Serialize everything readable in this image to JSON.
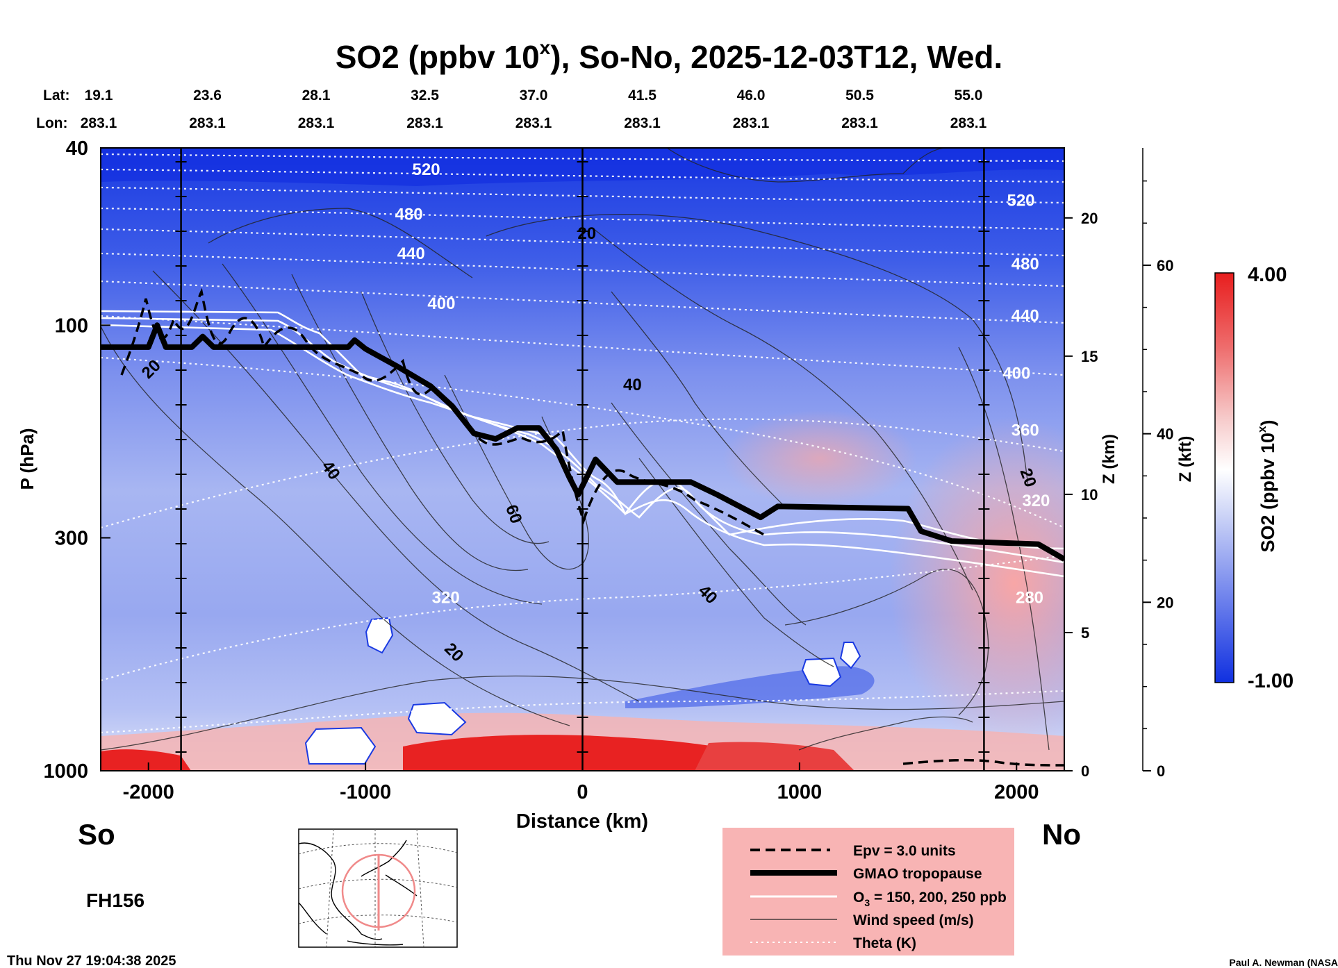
{
  "chart_data": {
    "type": "heatmap",
    "title": "SO2 (ppbv 10",
    "title_superscript": "x",
    "title_suffix": "), So-No, 2025-12-03T12, Wed.",
    "lat_label": "Lat:",
    "lon_label": "Lon:",
    "lat_ticks": [
      "19.1",
      "23.6",
      "28.1",
      "32.5",
      "37.0",
      "41.5",
      "46.0",
      "50.5",
      "55.0"
    ],
    "lon_ticks": [
      "283.1",
      "283.1",
      "283.1",
      "283.1",
      "283.1",
      "283.1",
      "283.1",
      "283.1",
      "283.1"
    ],
    "xlabel": "Distance (km)",
    "xlim": [
      -2220,
      2220
    ],
    "xticks": [
      -2000,
      -1000,
      0,
      1000,
      2000
    ],
    "xtick_labels": [
      "-2000",
      "-1000",
      "0",
      "1000",
      "2000"
    ],
    "ylabel": "P (hPa)",
    "ylim": [
      1000,
      40
    ],
    "yscale": "log",
    "yticks": [
      40,
      100,
      300,
      1000
    ],
    "ytick_labels": [
      "40",
      "100",
      "300",
      "1000"
    ],
    "z_km_label": "Z (km)",
    "z_km_ticks": [
      0,
      5,
      10,
      15,
      20
    ],
    "z_km_tick_labels": [
      "0",
      "5",
      "10",
      "15",
      "20"
    ],
    "z_kft_label": "Z (kft)",
    "z_kft_ticks": [
      0,
      20,
      40,
      60
    ],
    "z_kft_tick_labels": [
      "0",
      "20",
      "40",
      "60"
    ],
    "colorbar": {
      "label": "SO2 (ppbv 10",
      "label_superscript": "x",
      "label_suffix": ")",
      "max_label": "4.00",
      "min_label": "-1.00",
      "colors": [
        "#1030e0",
        "#6c80ec",
        "#c8d0f6",
        "#ffffff",
        "#f6c8c8",
        "#ee6c6c",
        "#e81e1e"
      ]
    },
    "theta_labels": [
      {
        "text": "520",
        "x": -720,
        "p": 46
      },
      {
        "text": "480",
        "x": -800,
        "p": 58
      },
      {
        "text": "440",
        "x": -790,
        "p": 71
      },
      {
        "text": "400",
        "x": -650,
        "p": 92
      },
      {
        "text": "320",
        "x": -630,
        "p": 420
      },
      {
        "text": "520",
        "x": 2020,
        "p": 54
      },
      {
        "text": "480",
        "x": 2040,
        "p": 75
      },
      {
        "text": "440",
        "x": 2040,
        "p": 98
      },
      {
        "text": "400",
        "x": 2000,
        "p": 132
      },
      {
        "text": "360",
        "x": 2040,
        "p": 177
      },
      {
        "text": "320",
        "x": 2090,
        "p": 255
      },
      {
        "text": "280",
        "x": 2060,
        "p": 420
      }
    ],
    "wind_labels": [
      {
        "text": "20",
        "x": -1970,
        "p": 128,
        "rot": -45
      },
      {
        "text": "40",
        "x": -1180,
        "p": 215,
        "rot": 55
      },
      {
        "text": "60",
        "x": -340,
        "p": 268,
        "rot": 70
      },
      {
        "text": "20",
        "x": -610,
        "p": 553,
        "rot": 45
      },
      {
        "text": "20",
        "x": 20,
        "p": 64,
        "rot": 0
      },
      {
        "text": "40",
        "x": 230,
        "p": 140,
        "rot": 0
      },
      {
        "text": "40",
        "x": 560,
        "p": 410,
        "rot": 45
      },
      {
        "text": "20",
        "x": 2030,
        "p": 222,
        "rot": 70
      }
    ],
    "tropopause": [
      [
        -2220,
        112
      ],
      [
        -2000,
        112
      ],
      [
        -1960,
        100
      ],
      [
        -1920,
        112
      ],
      [
        -1800,
        112
      ],
      [
        -1750,
        106
      ],
      [
        -1700,
        112
      ],
      [
        -1150,
        112
      ],
      [
        -1080,
        112
      ],
      [
        -1050,
        108
      ],
      [
        -1000,
        113
      ],
      [
        -850,
        124
      ],
      [
        -700,
        137
      ],
      [
        -600,
        152
      ],
      [
        -500,
        175
      ],
      [
        -400,
        180
      ],
      [
        -300,
        170
      ],
      [
        -200,
        170
      ],
      [
        -120,
        190
      ],
      [
        -60,
        220
      ],
      [
        -20,
        240
      ],
      [
        60,
        200
      ],
      [
        160,
        225
      ],
      [
        500,
        225
      ],
      [
        620,
        240
      ],
      [
        820,
        270
      ],
      [
        900,
        255
      ],
      [
        1500,
        258
      ],
      [
        1560,
        290
      ],
      [
        1700,
        305
      ],
      [
        2100,
        310
      ],
      [
        2220,
        335
      ]
    ],
    "section_lines_km": [
      -1850,
      0,
      1850
    ],
    "labels": {
      "left": "So",
      "right": "No",
      "forecast": "FH156"
    },
    "legend": [
      {
        "text": "Epv = 3.0 units",
        "style": "dashed"
      },
      {
        "text": "GMAO tropopause",
        "style": "thick"
      },
      {
        "text": "O",
        "sub": "3",
        "suffix": " = 150, 200, 250 ppb",
        "style": "white"
      },
      {
        "text": "Wind speed (m/s)",
        "style": "thin"
      },
      {
        "text": "Theta (K)",
        "style": "dotted"
      }
    ],
    "timestamp": "Thu Nov 27 19:04:38 2025",
    "credit": "Paul A. Newman (NASA"
  }
}
